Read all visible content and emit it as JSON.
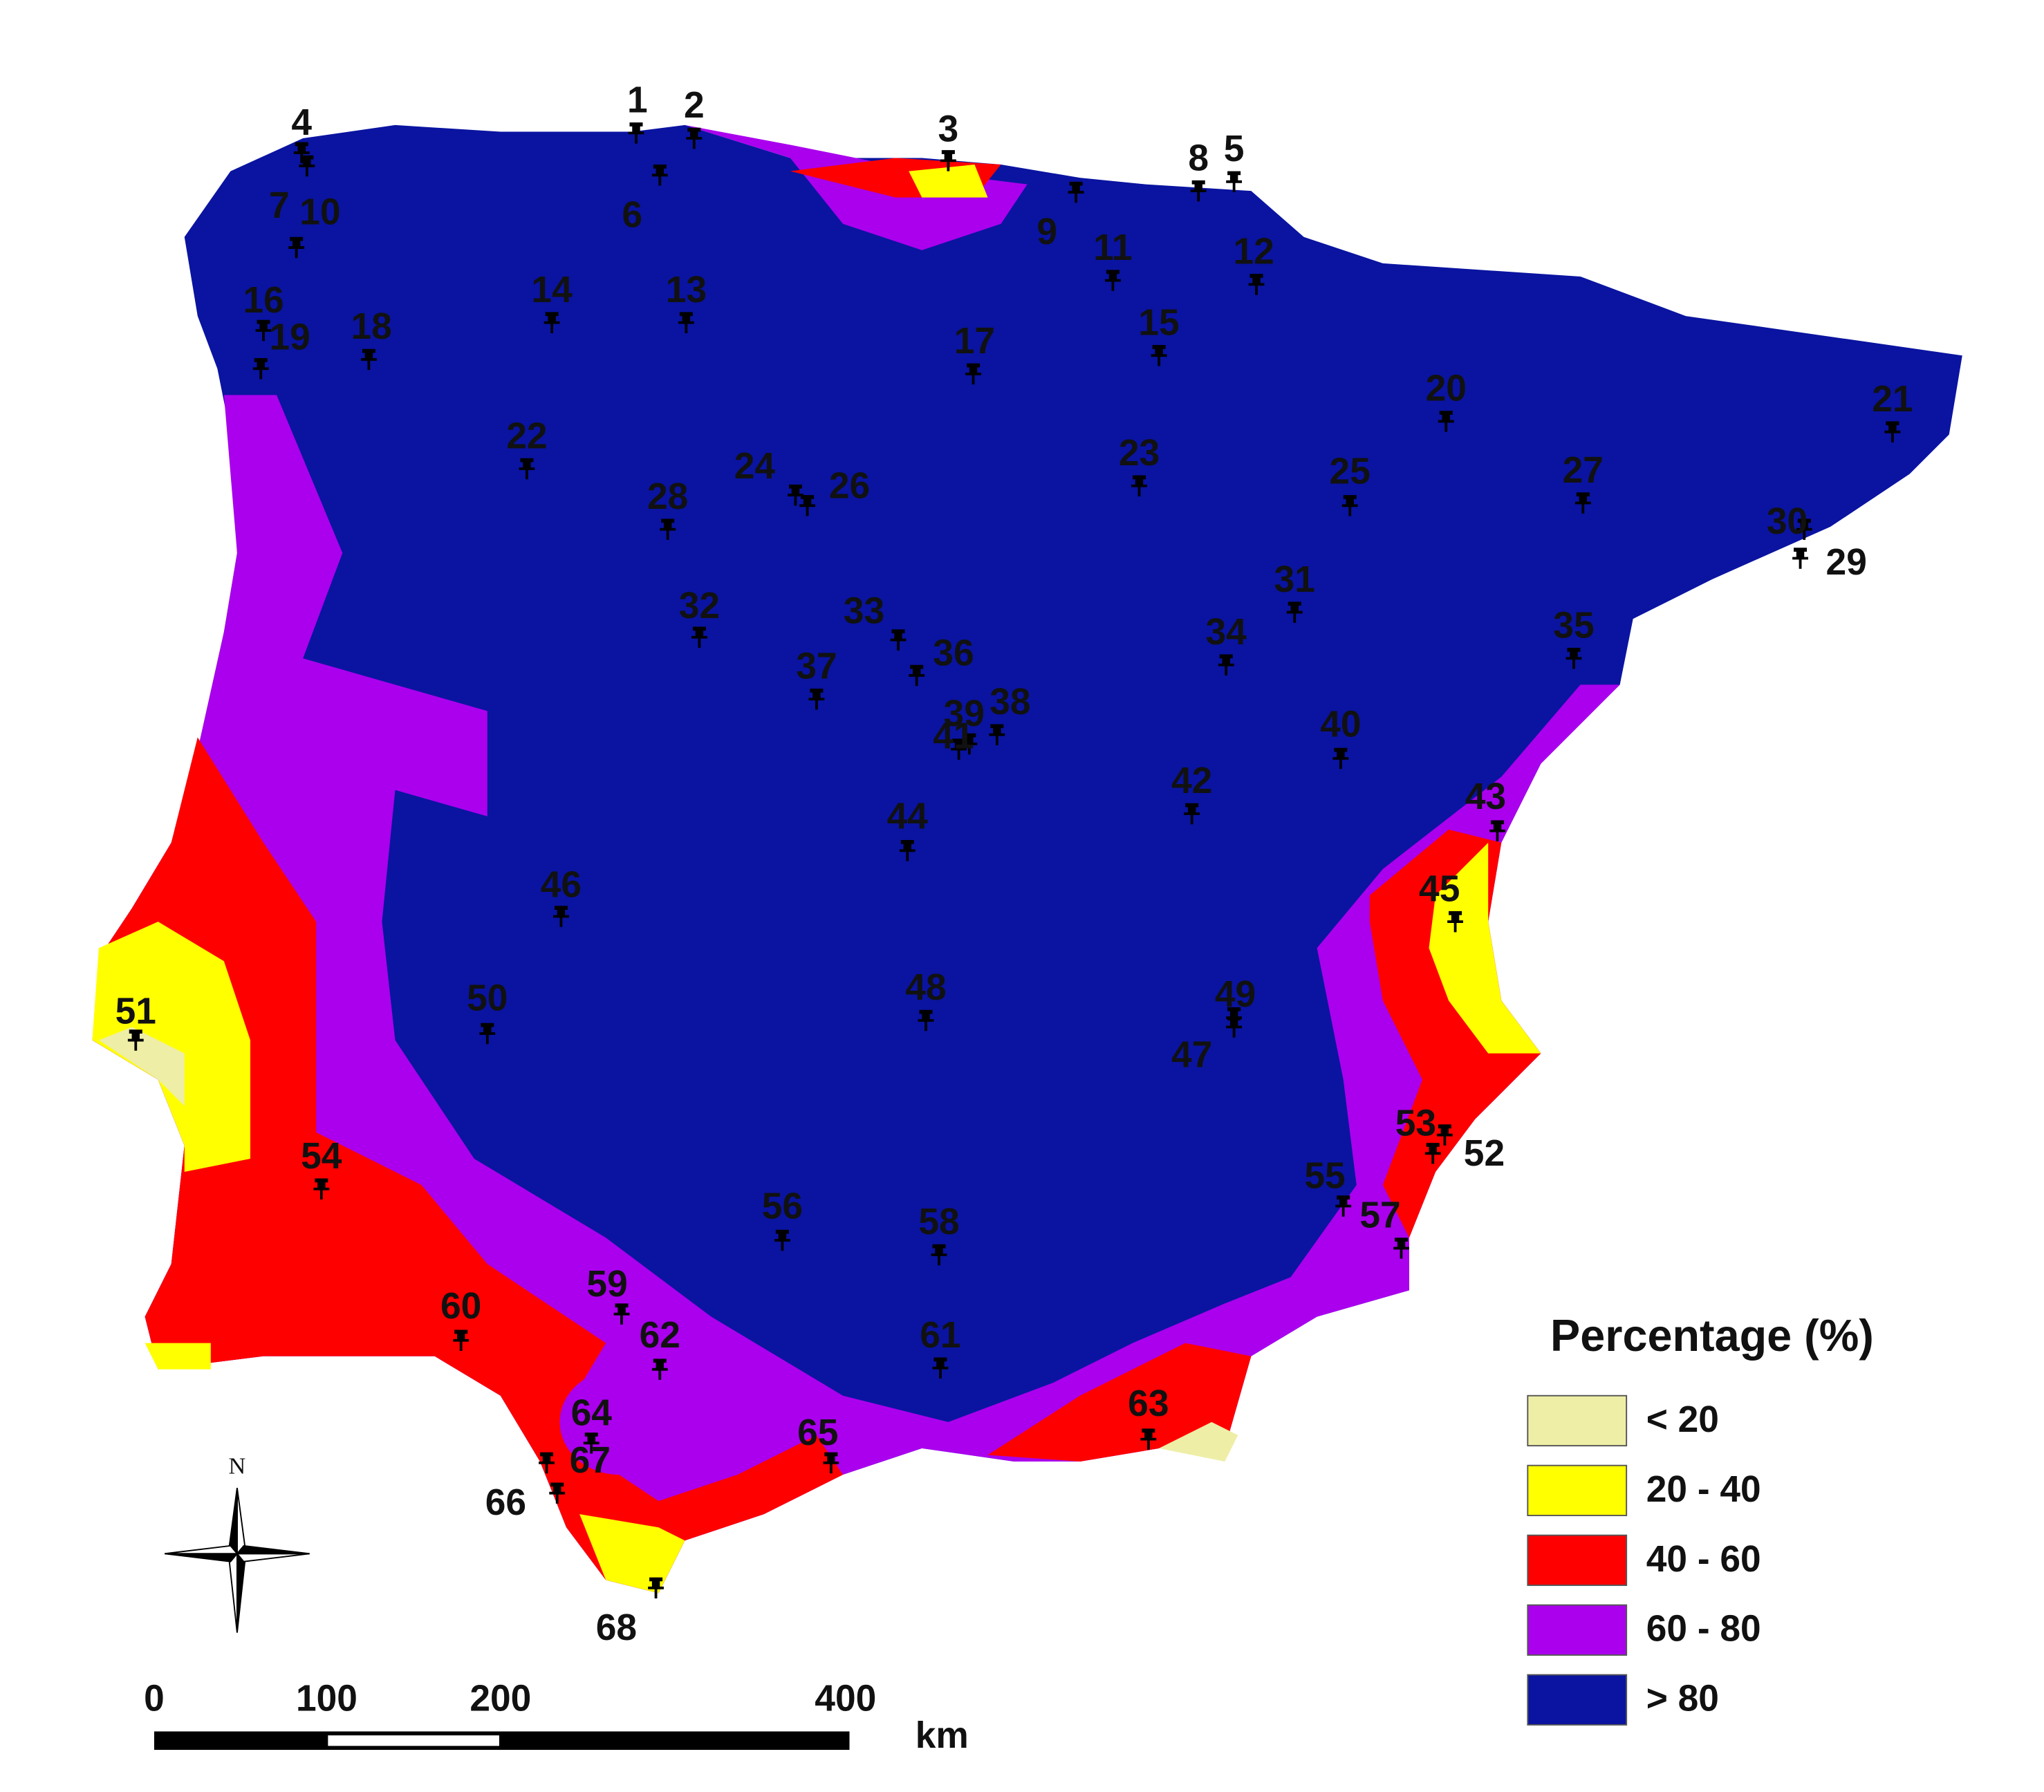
{
  "stations": {
    "labels": [
      "1",
      "2",
      "3",
      "4",
      "5",
      "6",
      "7",
      "8",
      "9",
      "10",
      "11",
      "12",
      "13",
      "14",
      "15",
      "16",
      "17",
      "18",
      "19",
      "20",
      "21",
      "22",
      "23",
      "24",
      "25",
      "26",
      "27",
      "28",
      "29",
      "30",
      "31",
      "32",
      "33",
      "34",
      "35",
      "36",
      "37",
      "38",
      "39",
      "40",
      "41",
      "42",
      "43",
      "44",
      "45",
      "46",
      "47",
      "48",
      "49",
      "50",
      "51",
      "52",
      "53",
      "54",
      "55",
      "56",
      "57",
      "58",
      "59",
      "60",
      "61",
      "62",
      "63",
      "64",
      "65",
      "66",
      "67",
      "68"
    ]
  },
  "legend": {
    "title": "Percentage (%)",
    "items": [
      {
        "label": "< 20",
        "color": "#eeeea6"
      },
      {
        "label": "20 - 40",
        "color": "#ffff00"
      },
      {
        "label": "40 - 60",
        "color": "#ff0000"
      },
      {
        "label": "60 - 80",
        "color": "#aa00ee"
      },
      {
        "label": "> 80",
        "color": "#0a14a0"
      }
    ]
  },
  "scale_bar": {
    "ticks": [
      "0",
      "100",
      "200",
      "400"
    ],
    "unit": "km"
  },
  "compass": {
    "label": "N"
  }
}
